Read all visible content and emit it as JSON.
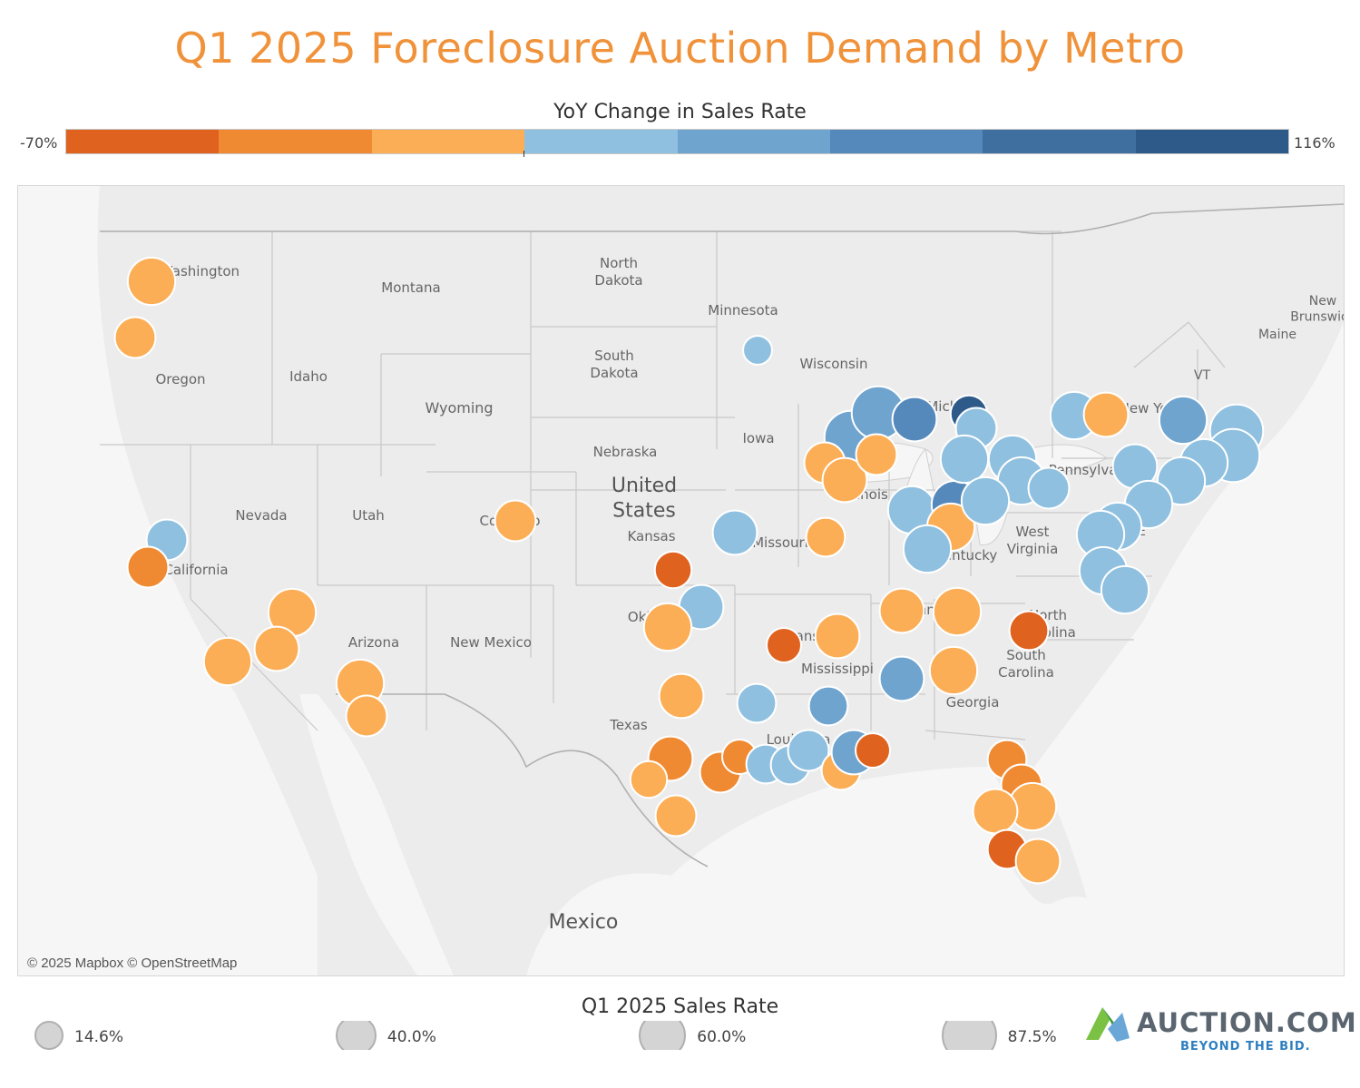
{
  "title": "Q1 2025 Foreclosure Auction Demand by Metro",
  "color_legend": {
    "title": "YoY Change in Sales Rate",
    "min_label": "-70%",
    "max_label": "116%",
    "colors": [
      "#e0621f",
      "#f08a32",
      "#fcae56",
      "#8fc0e0",
      "#6fa4cf",
      "#5689bb",
      "#3f6f9f",
      "#2e5a8a"
    ]
  },
  "map": {
    "credit": "© 2025 Mapbox © OpenStreetMap",
    "labels": [
      {
        "text": "North Dakota"
      },
      {
        "text": "Montana"
      },
      {
        "text": "Minnesota"
      },
      {
        "text": "South Dakota"
      },
      {
        "text": "Wisconsin"
      },
      {
        "text": "Oregon"
      },
      {
        "text": "Idaho"
      },
      {
        "text": "Wyoming"
      },
      {
        "text": "Iowa"
      },
      {
        "text": "Nebraska"
      },
      {
        "text": "United States"
      },
      {
        "text": "Nevada"
      },
      {
        "text": "Utah"
      },
      {
        "text": "Kansas"
      },
      {
        "text": "Missouri"
      },
      {
        "text": "California"
      },
      {
        "text": "Arizona"
      },
      {
        "text": "New Mexico"
      },
      {
        "text": "Texas"
      },
      {
        "text": "Mississippi"
      },
      {
        "text": "Georgia"
      },
      {
        "text": "North Carolina"
      },
      {
        "text": "South Carolina"
      },
      {
        "text": "West Virginia"
      },
      {
        "text": "Maine"
      },
      {
        "text": "VT"
      },
      {
        "text": "Mexico"
      },
      {
        "text": "Illinois"
      },
      {
        "text": "Kentucky"
      },
      {
        "text": "Pennsylvania"
      },
      {
        "text": "Washington"
      },
      {
        "text": "Colorado"
      },
      {
        "text": "Arkansas"
      },
      {
        "text": "New York"
      },
      {
        "text": "New Brunswick"
      },
      {
        "text": "Louisiana"
      },
      {
        "text": "DE"
      },
      {
        "text": "Michigan"
      },
      {
        "text": "Tennessee"
      },
      {
        "text": "Oklahoma"
      }
    ],
    "metros": [
      {
        "region": "Seattle",
        "change": "orange-light",
        "rate": 60
      },
      {
        "region": "Portland",
        "change": "orange-light",
        "rate": 40
      },
      {
        "region": "San Francisco",
        "change": "blue-light",
        "rate": 40
      },
      {
        "region": "San Jose",
        "change": "orange",
        "rate": 40
      },
      {
        "region": "Las Vegas",
        "change": "orange-light",
        "rate": 60
      },
      {
        "region": "Riverside",
        "change": "orange-light",
        "rate": 50
      },
      {
        "region": "Los Angeles",
        "change": "orange-light",
        "rate": 60
      },
      {
        "region": "Phoenix",
        "change": "orange-light",
        "rate": 60
      },
      {
        "region": "Tucson",
        "change": "orange-light",
        "rate": 40
      },
      {
        "region": "Denver",
        "change": "orange-light",
        "rate": 40
      },
      {
        "region": "Minneapolis",
        "change": "blue-light",
        "rate": 14.6
      },
      {
        "region": "Kansas City",
        "change": "blue-light",
        "rate": 50
      },
      {
        "region": "Wichita",
        "change": "orange-dark",
        "rate": 30
      },
      {
        "region": "Tulsa",
        "change": "blue-light",
        "rate": 50
      },
      {
        "region": "Oklahoma City",
        "change": "orange-light",
        "rate": 60
      },
      {
        "region": "Dallas",
        "change": "orange-light",
        "rate": 50
      },
      {
        "region": "Austin",
        "change": "orange",
        "rate": 50
      },
      {
        "region": "San Antonio",
        "change": "orange-light",
        "rate": 40
      },
      {
        "region": "Corpus Christi",
        "change": "orange-light",
        "rate": 30
      },
      {
        "region": "Houston",
        "change": "orange",
        "rate": 40
      },
      {
        "region": "Beaumont",
        "change": "orange",
        "rate": 25
      },
      {
        "region": "Little Rock",
        "change": "orange-dark",
        "rate": 25
      },
      {
        "region": "Shreveport",
        "change": "blue-light",
        "rate": 35
      },
      {
        "region": "Lafayette",
        "change": "blue-light",
        "rate": 35
      },
      {
        "region": "Baton Rouge",
        "change": "blue-light",
        "rate": 35
      },
      {
        "region": "New Orleans",
        "change": "blue-light",
        "rate": 40
      },
      {
        "region": "Jackson",
        "change": "blue-mid",
        "rate": 35
      },
      {
        "region": "Memphis",
        "change": "orange-light",
        "rate": 50
      },
      {
        "region": "Gulfport",
        "change": "orange-light",
        "rate": 35
      },
      {
        "region": "Mobile",
        "change": "blue-mid",
        "rate": 50
      },
      {
        "region": "Pensacola",
        "change": "orange-dark",
        "rate": 25
      },
      {
        "region": "Birmingham",
        "change": "blue-mid",
        "rate": 50
      },
      {
        "region": "Nashville",
        "change": "orange-light",
        "rate": 50
      },
      {
        "region": "Knoxville",
        "change": "orange-light",
        "rate": 60
      },
      {
        "region": "Atlanta",
        "change": "orange-light",
        "rate": 60
      },
      {
        "region": "Charlotte",
        "change": "orange-dark",
        "rate": 35
      },
      {
        "region": "Jacksonville",
        "change": "orange",
        "rate": 35
      },
      {
        "region": "Orlando",
        "change": "orange",
        "rate": 40
      },
      {
        "region": "Tampa",
        "change": "orange-light",
        "rate": 60
      },
      {
        "region": "Melbourne",
        "change": "orange-light",
        "rate": 50
      },
      {
        "region": "Fort Myers",
        "change": "orange-dark",
        "rate": 35
      },
      {
        "region": "Miami",
        "change": "orange-light",
        "rate": 50
      },
      {
        "region": "St. Louis",
        "change": "orange-light",
        "rate": 35
      },
      {
        "region": "Chicago",
        "change": "blue-mid",
        "rate": 80
      },
      {
        "region": "Milwaukee",
        "change": "blue-mid",
        "rate": 80
      },
      {
        "region": "Grand Rapids",
        "change": "blue-dark",
        "rate": 50
      },
      {
        "region": "Flint",
        "change": "blue-darkest",
        "rate": 30
      },
      {
        "region": "Detroit",
        "change": "blue-light",
        "rate": 40
      },
      {
        "region": "Peoria",
        "change": "orange-light",
        "rate": 40
      },
      {
        "region": "Springfield",
        "change": "orange-light",
        "rate": 50
      },
      {
        "region": "Fort Wayne",
        "change": "orange-light",
        "rate": 40
      },
      {
        "region": "Indianapolis",
        "change": "blue-light",
        "rate": 60
      },
      {
        "region": "Columbus IN",
        "change": "blue-dark",
        "rate": 60
      },
      {
        "region": "Cincinnati",
        "change": "orange-light",
        "rate": 60
      },
      {
        "region": "Louisville",
        "change": "blue-light",
        "rate": 60
      },
      {
        "region": "Toledo",
        "change": "blue-light",
        "rate": 60
      },
      {
        "region": "Cleveland",
        "change": "blue-light",
        "rate": 60
      },
      {
        "region": "Akron",
        "change": "blue-light",
        "rate": 60
      },
      {
        "region": "Columbus",
        "change": "blue-light",
        "rate": 60
      },
      {
        "region": "Pittsburgh",
        "change": "blue-light",
        "rate": 40
      },
      {
        "region": "Buffalo",
        "change": "blue-light",
        "rate": 60
      },
      {
        "region": "Rochester",
        "change": "orange-light",
        "rate": 50
      },
      {
        "region": "Albany",
        "change": "blue-mid",
        "rate": 60
      },
      {
        "region": "Boston",
        "change": "blue-light",
        "rate": 80
      },
      {
        "region": "Providence",
        "change": "blue-light",
        "rate": 80
      },
      {
        "region": "Hartford",
        "change": "blue-light",
        "rate": 60
      },
      {
        "region": "New York",
        "change": "blue-light",
        "rate": 60
      },
      {
        "region": "Scranton",
        "change": "blue-light",
        "rate": 50
      },
      {
        "region": "Philadelphia",
        "change": "blue-light",
        "rate": 60
      },
      {
        "region": "Baltimore",
        "change": "blue-light",
        "rate": 60
      },
      {
        "region": "Washington DC",
        "change": "blue-light",
        "rate": 60
      },
      {
        "region": "Richmond",
        "change": "blue-light",
        "rate": 60
      },
      {
        "region": "Virginia Beach",
        "change": "blue-light",
        "rate": 60
      }
    ]
  },
  "size_legend": {
    "title": "Q1 2025 Sales Rate",
    "items": [
      {
        "label": "14.6%",
        "value": 14.6
      },
      {
        "label": "40.0%",
        "value": 40.0
      },
      {
        "label": "60.0%",
        "value": 60.0
      },
      {
        "label": "87.5%",
        "value": 87.5
      }
    ]
  },
  "logo": {
    "name": "AUCTION.COM",
    "tagline": "BEYOND THE BID."
  }
}
